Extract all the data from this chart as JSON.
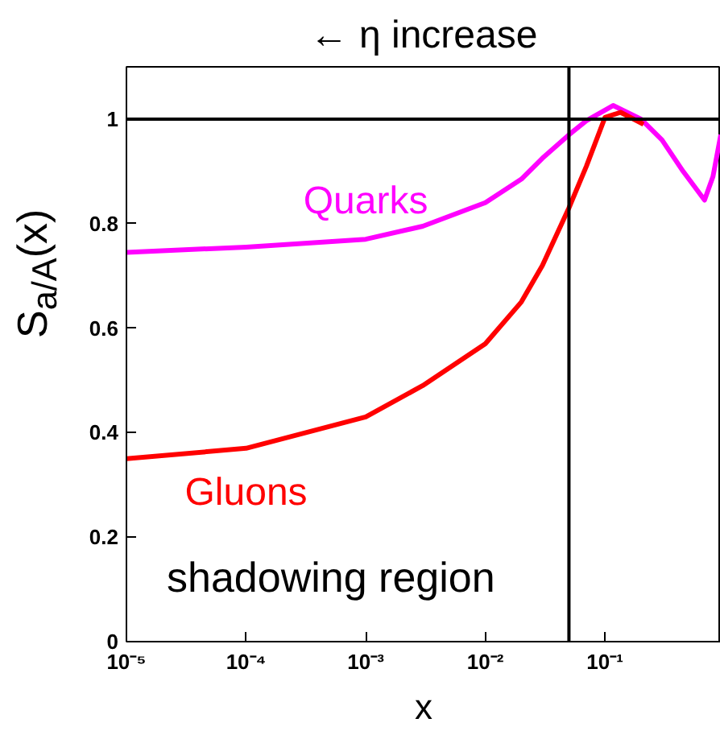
{
  "chart_data": {
    "type": "line",
    "title": "← η increase",
    "xlabel": "x",
    "ylabel": "S$_{a/A}$(x)",
    "log": "x",
    "xlim": [
      1e-05,
      0.93
    ],
    "ylim": [
      0,
      1.1
    ],
    "xticks": [
      {
        "value": 1e-05,
        "label": "10⁻⁵"
      },
      {
        "value": 0.0001,
        "label": "10⁻⁴"
      },
      {
        "value": 0.001,
        "label": "10⁻³"
      },
      {
        "value": 0.01,
        "label": "10⁻²"
      },
      {
        "value": 0.1,
        "label": "10⁻¹"
      }
    ],
    "yticks": [
      0,
      0.2,
      0.4,
      0.6,
      0.8,
      1
    ],
    "grid": false,
    "legend": false,
    "series": [
      {
        "name": "Quarks",
        "color": "#ff00ff",
        "x": [
          1e-05,
          0.0001,
          0.001,
          0.003,
          0.01,
          0.02,
          0.03,
          0.05,
          0.07,
          0.117,
          0.2,
          0.3,
          0.45,
          0.68,
          0.8,
          0.93
        ],
        "values": [
          0.745,
          0.755,
          0.77,
          0.795,
          0.84,
          0.885,
          0.925,
          0.97,
          0.997,
          1.026,
          1.0,
          0.96,
          0.9,
          0.845,
          0.89,
          0.97
        ]
      },
      {
        "name": "Gluons",
        "color": "#ff0000",
        "x": [
          1e-05,
          0.0001,
          0.001,
          0.003,
          0.01,
          0.02,
          0.03,
          0.05,
          0.07,
          0.1,
          0.135,
          0.21
        ],
        "values": [
          0.35,
          0.37,
          0.43,
          0.49,
          0.57,
          0.65,
          0.72,
          0.83,
          0.91,
          1.003,
          1.013,
          0.99
        ]
      }
    ],
    "ref_lines": [
      {
        "axis": "y",
        "value": 1,
        "color": "#000000"
      },
      {
        "axis": "x",
        "value": 0.05,
        "color": "#000000"
      }
    ],
    "annotations": [
      "shadowing region"
    ]
  }
}
